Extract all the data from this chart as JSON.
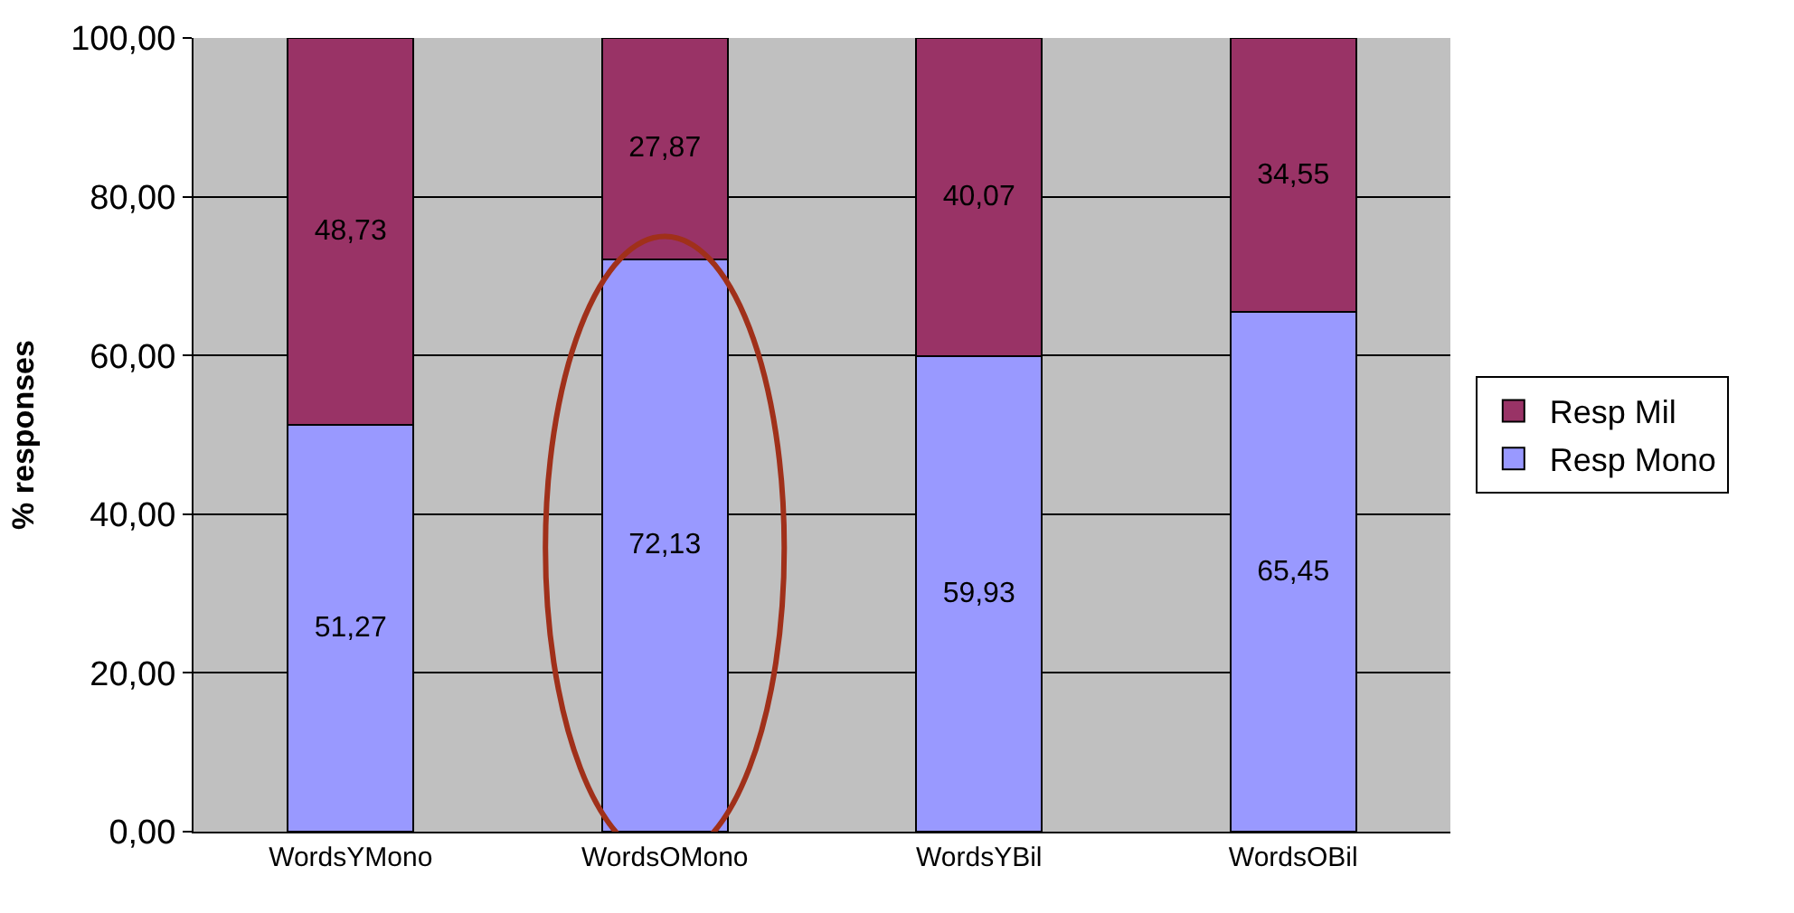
{
  "chart_data": {
    "type": "bar",
    "stacked": true,
    "ylabel": "% responses",
    "categories": [
      "WordsYMono",
      "WordsOMono",
      "WordsYBil",
      "WordsOBil"
    ],
    "series": [
      {
        "name": "Resp Mono",
        "color": "#9999ff",
        "values": [
          51.27,
          72.13,
          59.93,
          65.45
        ],
        "value_labels": [
          "51,27",
          "72,13",
          "59,93",
          "65,45"
        ]
      },
      {
        "name": "Resp Mil",
        "color": "#993366",
        "values": [
          48.73,
          27.87,
          40.07,
          34.55
        ],
        "value_labels": [
          "48,73",
          "27,87",
          "40,07",
          "34,55"
        ]
      }
    ],
    "ylim": [
      0,
      100
    ],
    "yticks": [
      {
        "value": 0,
        "label": "0,00"
      },
      {
        "value": 20,
        "label": "20,00"
      },
      {
        "value": 40,
        "label": "40,00"
      },
      {
        "value": 60,
        "label": "60,00"
      },
      {
        "value": 80,
        "label": "80,00"
      },
      {
        "value": 100,
        "label": "100,00"
      }
    ],
    "grid": "y",
    "legend": "right"
  }
}
